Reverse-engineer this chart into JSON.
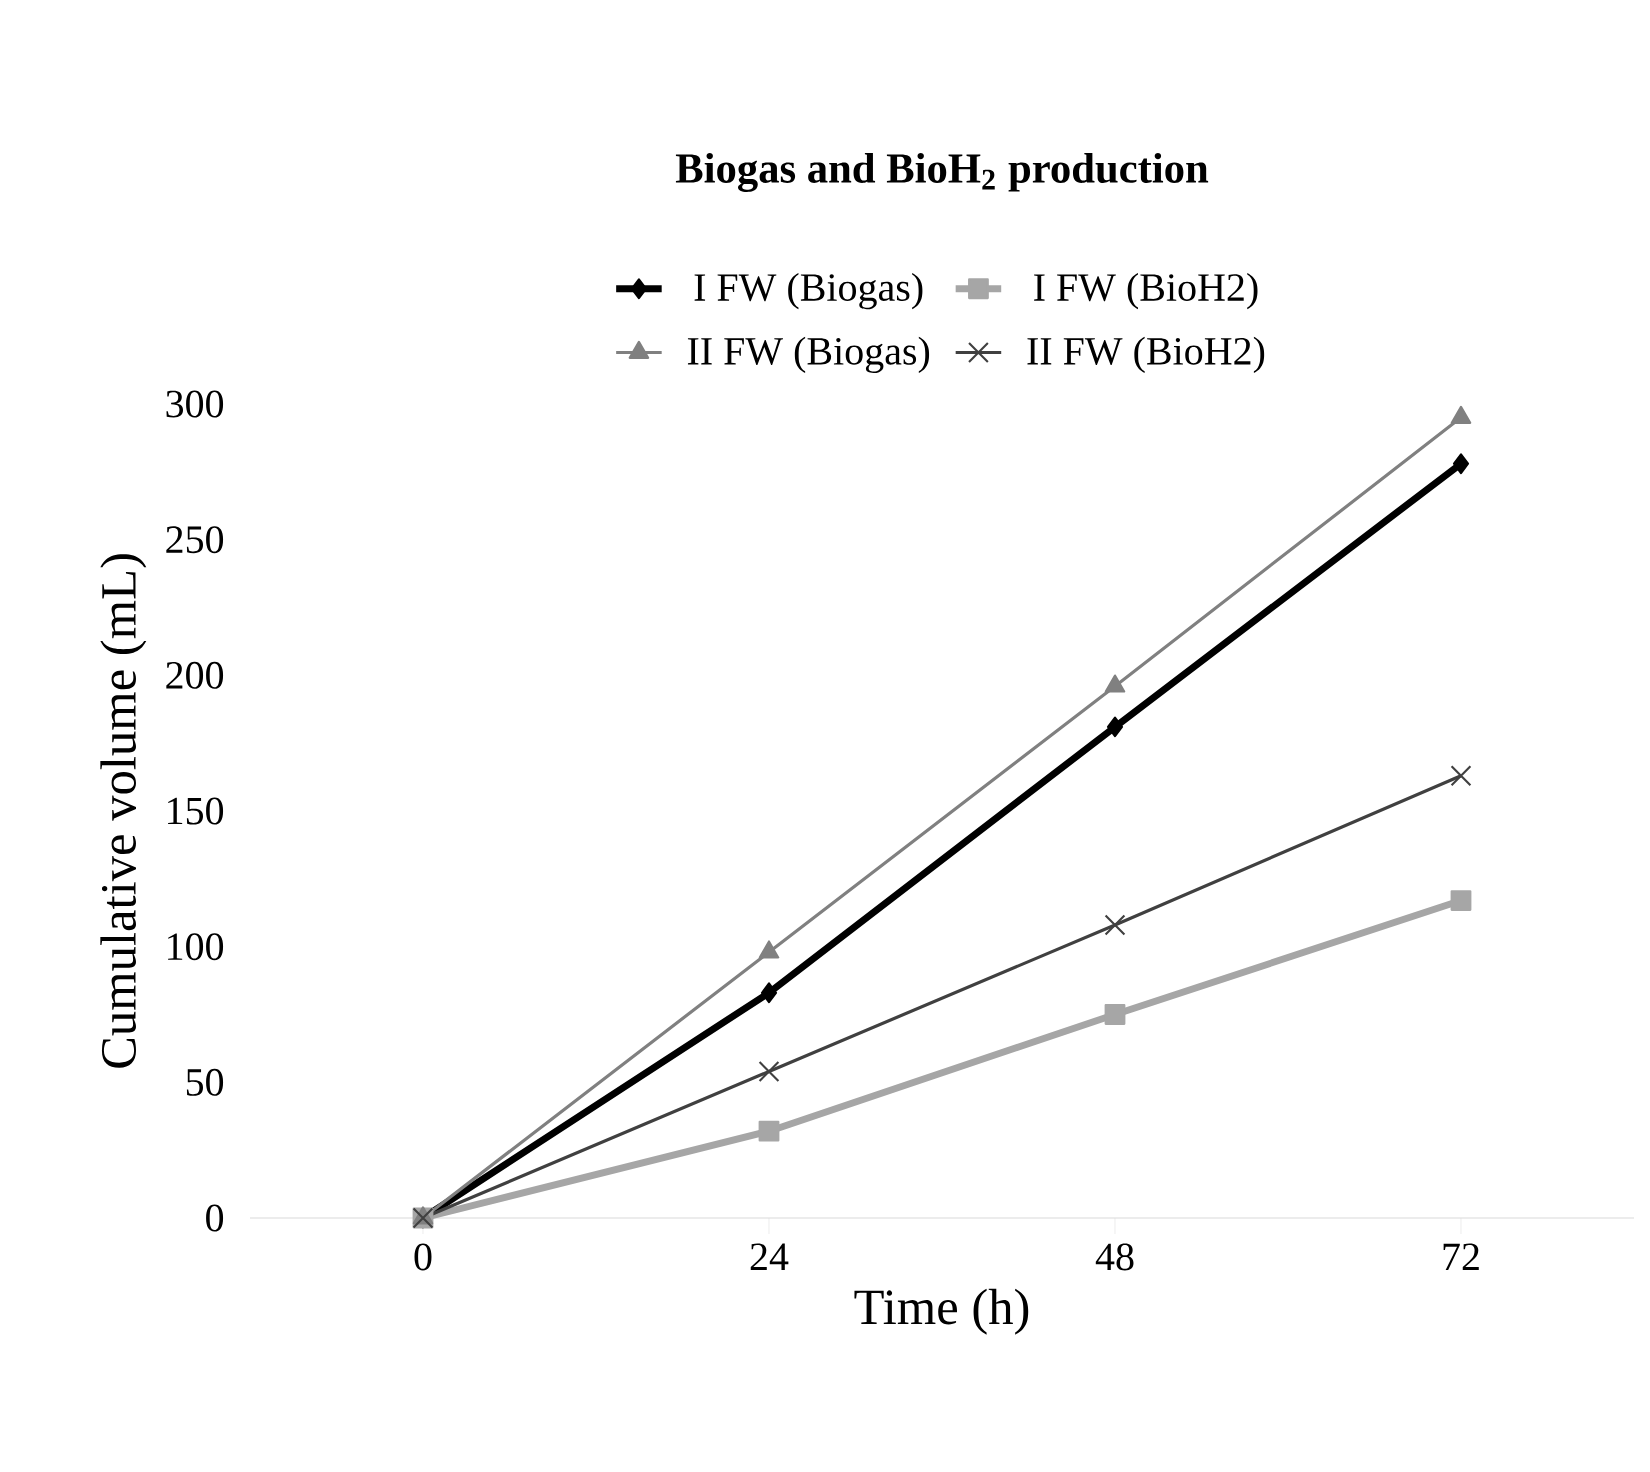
{
  "chart_data": {
    "type": "line",
    "title": "Biogas and BioH$_{2}$ production",
    "xlabel": "Time (h)",
    "ylabel": "Cumulative volume (mL)",
    "categories": [
      "0",
      "24",
      "48",
      "72"
    ],
    "series": [
      {
        "name": "I FW (Biogas)",
        "color": "#000000",
        "marker": "diamond",
        "values": [
          0,
          83,
          181,
          278
        ]
      },
      {
        "name": "I FW (BioH2)",
        "color": "#a6a6a6",
        "marker": "square",
        "values": [
          0,
          32,
          75,
          117
        ]
      },
      {
        "name": "II FW (Biogas)",
        "color": "#808080",
        "marker": "triangle",
        "values": [
          0,
          98,
          196,
          295
        ]
      },
      {
        "name": "II FW (BioH2)",
        "color": "#404040",
        "marker": "cross",
        "values": [
          0,
          54,
          108,
          163
        ]
      }
    ],
    "ylim": [
      0,
      300
    ],
    "yticks": [
      0,
      50,
      100,
      150,
      200,
      250,
      300
    ],
    "grid": false,
    "legend": "top",
    "line_style": "solid"
  }
}
